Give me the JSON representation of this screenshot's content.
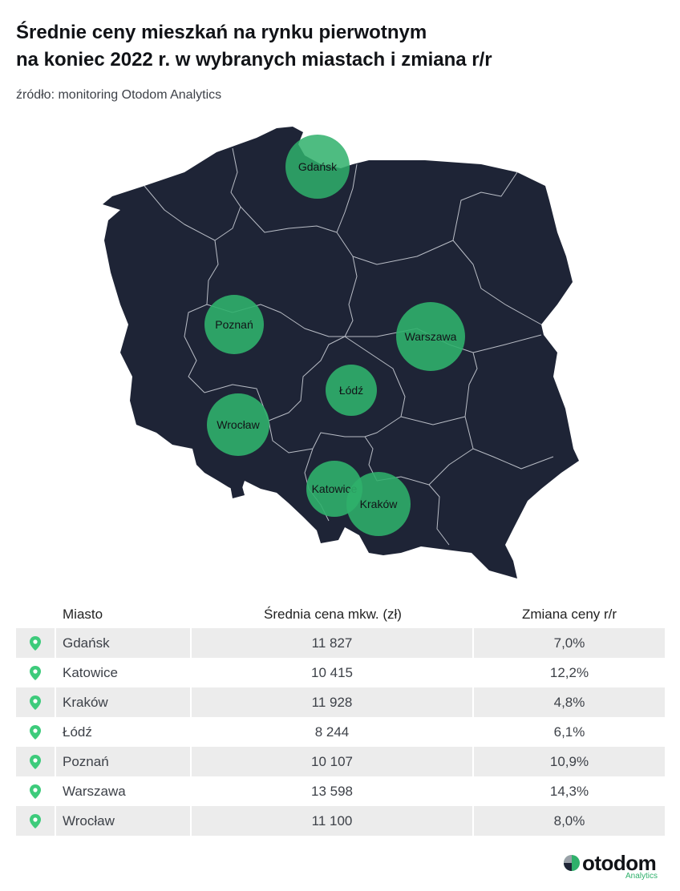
{
  "header": {
    "title_line1": "Średnie ceny mieszkań na rynku pierwotnym",
    "title_line2": "na koniec 2022 r. w wybranych miastach i zmiana r/r",
    "source": "źródło: monitoring Otodom Analytics"
  },
  "map": {
    "country_color": "#1e2436",
    "border_color": "#b9bdc6",
    "bubble_color": "#2fb06b",
    "bubbles": [
      {
        "label": "Gdańsk"
      },
      {
        "label": "Poznań"
      },
      {
        "label": "Warszawa"
      },
      {
        "label": "Łódź"
      },
      {
        "label": "Wrocław"
      },
      {
        "label": "Katowice"
      },
      {
        "label": "Kraków"
      }
    ]
  },
  "table": {
    "headers": {
      "city": "Miasto",
      "price": "Średnia cena mkw. (zł)",
      "change": "Zmiana ceny r/r"
    },
    "pin_icon": "location-pin-icon",
    "pin_color": "#3dcb7b",
    "rows": [
      {
        "city": "Gdańsk",
        "price": "11 827",
        "change": "7,0%"
      },
      {
        "city": "Katowice",
        "price": "10 415",
        "change": "12,2%"
      },
      {
        "city": "Kraków",
        "price": "11 928",
        "change": "4,8%"
      },
      {
        "city": "Łódź",
        "price": "8 244",
        "change": "6,1%"
      },
      {
        "city": "Poznań",
        "price": "10 107",
        "change": "10,9%"
      },
      {
        "city": "Warszawa",
        "price": "13 598",
        "change": "14,3%"
      },
      {
        "city": "Wrocław",
        "price": "11 100",
        "change": "8,0%"
      }
    ]
  },
  "logo": {
    "name": "otodom",
    "sub": "Analytics"
  }
}
